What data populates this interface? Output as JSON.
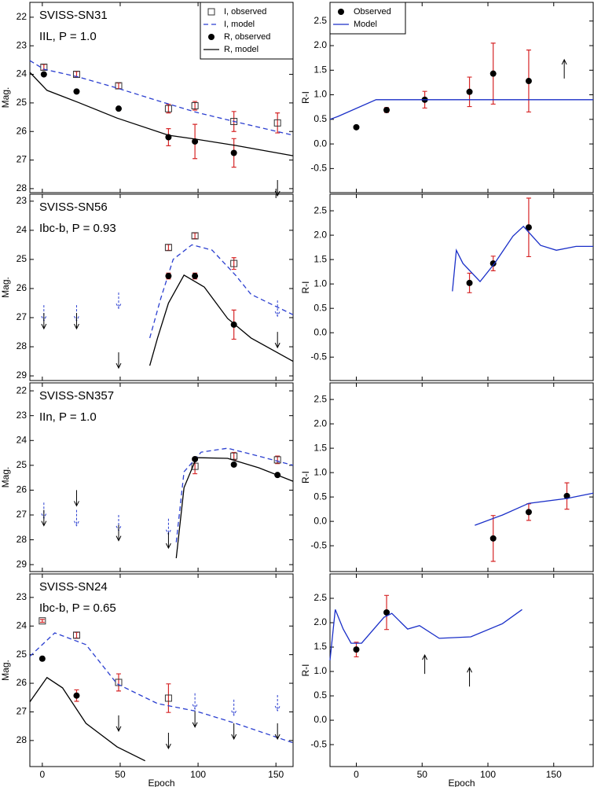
{
  "chart_data": [
    {
      "type": "line",
      "title": "SVISS-SN31",
      "subtitle": "IIL, P = 1.0",
      "ylabel": "Mag.",
      "xlim": [
        -8,
        161
      ],
      "ylim": [
        28.14,
        21.48
      ],
      "xticks": [
        0,
        50,
        100,
        150
      ],
      "yticks": [
        22,
        23,
        24,
        25,
        26,
        27,
        28
      ],
      "legend": "upper right",
      "series": [
        {
          "name": "I, observed",
          "kind": "observed",
          "marker": "square",
          "color": "#333333",
          "error_color": "#d62728",
          "x": [
            1,
            22,
            49,
            81,
            98,
            123,
            151
          ],
          "values": [
            23.75,
            24.0,
            24.4,
            25.2,
            25.1,
            25.65,
            25.7
          ],
          "errors": [
            0.1,
            0.1,
            0.1,
            0.15,
            0.15,
            0.35,
            0.35
          ]
        },
        {
          "name": "I, model",
          "kind": "model",
          "line": "dashed",
          "color": "#2b3fd0",
          "x": [
            -8,
            1,
            23,
            48,
            74,
            99,
            124,
            161
          ],
          "values": [
            23.52,
            23.82,
            24.09,
            24.48,
            24.92,
            25.33,
            25.66,
            26.13
          ]
        },
        {
          "name": "R, observed",
          "kind": "observed",
          "marker": "circle",
          "color": "#000000",
          "error_color": "#d62728",
          "x": [
            1,
            22,
            49,
            81,
            98,
            123
          ],
          "values": [
            24.0,
            24.6,
            25.2,
            26.2,
            26.35,
            26.75
          ],
          "errors": [
            0.05,
            0.05,
            0.05,
            0.3,
            0.6,
            0.5
          ]
        },
        {
          "name": "R, model",
          "kind": "model",
          "line": "solid",
          "color": "#000000",
          "x": [
            -8,
            3,
            23,
            48,
            81,
            99,
            124,
            161
          ],
          "values": [
            23.93,
            24.56,
            24.98,
            25.53,
            26.13,
            26.27,
            26.49,
            26.85
          ]
        },
        {
          "kind": "upper_limit",
          "line": "solid",
          "color": "#000000",
          "x": [
            151
          ],
          "values": [
            27.7
          ]
        }
      ]
    },
    {
      "type": "line",
      "ylabel": "R-I",
      "xlim": [
        -20,
        180
      ],
      "ylim": [
        -0.99,
        2.88
      ],
      "xticks": [
        0,
        50,
        100,
        150
      ],
      "yticks": [
        -0.5,
        {
          "value": 0,
          "label": "0.0"
        },
        0.5,
        {
          "value": 1,
          "label": "1.0"
        },
        1.5,
        {
          "value": 2,
          "label": "2.0"
        },
        2.5
      ],
      "legend": "upper left",
      "series": [
        {
          "name": "Observed",
          "kind": "observed",
          "marker": "circle",
          "color": "#000000",
          "error_color": "#d62728",
          "x": [
            0,
            23,
            52,
            86,
            104,
            131
          ],
          "values": [
            0.34,
            0.69,
            0.9,
            1.06,
            1.43,
            1.28
          ],
          "errors": [
            0.03,
            0.05,
            0.17,
            0.3,
            0.62,
            0.63
          ]
        },
        {
          "name": "Model",
          "kind": "model",
          "line": "solid",
          "color": "#1a2fc8",
          "x": [
            -20,
            -14,
            15,
            33,
            180
          ],
          "values": [
            0.5,
            0.56,
            0.9,
            0.9,
            0.9
          ]
        },
        {
          "kind": "lower_limit",
          "line": "solid",
          "color": "#000000",
          "x": [
            158
          ],
          "values": [
            1.33
          ]
        }
      ]
    },
    {
      "type": "line",
      "title": "SVISS-SN56",
      "subtitle": "Ibc-b, P = 0.93",
      "ylabel": "Mag.",
      "xlim": [
        -8,
        161
      ],
      "ylim": [
        29.16,
        22.76
      ],
      "xticks": [
        0,
        50,
        100,
        150
      ],
      "yticks": [
        23,
        24,
        25,
        26,
        27,
        28,
        29
      ],
      "series": [
        {
          "kind": "observed",
          "marker": "square",
          "color": "#333333",
          "error_color": "#d62728",
          "x": [
            81,
            98,
            123
          ],
          "values": [
            24.59,
            24.19,
            25.14
          ],
          "errors": [
            0.1,
            0.1,
            0.2
          ]
        },
        {
          "kind": "model",
          "line": "dashed",
          "color": "#2b3fd0",
          "x": [
            69,
            76,
            84,
            96,
            109,
            124,
            134,
            161
          ],
          "values": [
            27.7,
            26.35,
            25.0,
            24.5,
            24.68,
            25.54,
            26.2,
            26.9
          ]
        },
        {
          "kind": "observed",
          "marker": "circle",
          "color": "#000000",
          "error_color": "#d62728",
          "x": [
            81,
            98,
            123
          ],
          "values": [
            25.57,
            25.57,
            27.24
          ],
          "errors": [
            0.1,
            0.1,
            0.5
          ]
        },
        {
          "kind": "model",
          "line": "solid",
          "color": "#000000",
          "x": [
            69,
            74,
            81,
            91,
            104,
            119,
            134,
            161
          ],
          "values": [
            28.65,
            27.7,
            26.5,
            25.54,
            25.95,
            27.03,
            27.7,
            28.5
          ]
        },
        {
          "kind": "upper_limit",
          "line": "dashed",
          "color": "#2b3fd0",
          "x": [
            1,
            22,
            49,
            151
          ],
          "values": [
            26.57,
            26.57,
            26.14,
            26.41
          ]
        },
        {
          "kind": "upper_limit",
          "line": "solid",
          "color": "#000000",
          "x": [
            1,
            22,
            49,
            151
          ],
          "values": [
            26.84,
            26.84,
            28.19,
            27.49
          ]
        }
      ]
    },
    {
      "type": "line",
      "ylabel": "R-I",
      "xlim": [
        -20,
        180
      ],
      "ylim": [
        -0.98,
        2.84
      ],
      "xticks": [
        0,
        50,
        100,
        150
      ],
      "yticks": [
        -0.5,
        {
          "value": 0,
          "label": "0.0"
        },
        0.5,
        {
          "value": 1,
          "label": "1.0"
        },
        1.5,
        {
          "value": 2,
          "label": "2.0"
        },
        2.5
      ],
      "series": [
        {
          "kind": "observed",
          "marker": "circle",
          "color": "#000000",
          "error_color": "#d62728",
          "x": [
            86,
            104,
            131
          ],
          "values": [
            1.02,
            1.42,
            2.16
          ],
          "errors": [
            0.2,
            0.15,
            0.6
          ]
        },
        {
          "kind": "model",
          "line": "solid",
          "color": "#1a2fc8",
          "x": [
            73,
            76,
            81,
            94,
            105,
            119,
            127,
            140,
            152,
            167,
            180
          ],
          "values": [
            0.85,
            1.69,
            1.42,
            1.05,
            1.42,
            1.98,
            2.18,
            1.79,
            1.69,
            1.77,
            1.77
          ]
        }
      ]
    },
    {
      "type": "line",
      "title": "SVISS-SN357",
      "subtitle": "IIn, P = 1.0",
      "ylabel": "Mag.",
      "xlim": [
        -8,
        161
      ],
      "ylim": [
        29.28,
        21.68
      ],
      "xticks": [
        0,
        50,
        100,
        150
      ],
      "yticks": [
        22,
        23,
        24,
        25,
        26,
        27,
        28,
        29
      ],
      "series": [
        {
          "kind": "observed",
          "marker": "square",
          "color": "#333333",
          "error_color": "#d62728",
          "x": [
            98,
            123,
            151
          ],
          "values": [
            25.04,
            24.63,
            24.78
          ],
          "errors": [
            0.3,
            0.15,
            0.15
          ]
        },
        {
          "kind": "model",
          "line": "dashed",
          "color": "#2b3fd0",
          "x": [
            86,
            91,
            102,
            119,
            139,
            161
          ],
          "values": [
            28.1,
            25.26,
            24.47,
            24.31,
            24.63,
            25.0
          ]
        },
        {
          "kind": "observed",
          "marker": "circle",
          "color": "#000000",
          "error_color": "#d62728",
          "x": [
            98,
            123,
            151
          ],
          "values": [
            24.75,
            24.97,
            25.39
          ],
          "errors": [
            0.05,
            0.05,
            0.05
          ]
        },
        {
          "kind": "model",
          "line": "solid",
          "color": "#000000",
          "x": [
            86,
            91,
            99,
            119,
            139,
            161
          ],
          "values": [
            28.74,
            25.9,
            24.69,
            24.72,
            25.1,
            25.64
          ]
        },
        {
          "kind": "upper_limit",
          "line": "dashed",
          "color": "#2b3fd0",
          "x": [
            1,
            22,
            49,
            81
          ],
          "values": [
            26.5,
            26.8,
            27.0,
            27.15
          ]
        },
        {
          "kind": "upper_limit",
          "line": "solid",
          "color": "#000000",
          "x": [
            1,
            22,
            49,
            81
          ],
          "values": [
            26.8,
            26.0,
            27.4,
            27.7
          ]
        }
      ]
    },
    {
      "type": "line",
      "ylabel": "R-I",
      "xlim": [
        -20,
        180
      ],
      "ylim": [
        -1.03,
        2.84
      ],
      "xticks": [
        0,
        50,
        100,
        150
      ],
      "yticks": [
        -0.5,
        {
          "value": 0,
          "label": "0.0"
        },
        0.5,
        {
          "value": 1,
          "label": "1.0"
        },
        1.5,
        {
          "value": 2,
          "label": "2.0"
        },
        2.5
      ],
      "series": [
        {
          "kind": "observed",
          "marker": "circle",
          "color": "#000000",
          "error_color": "#d62728",
          "x": [
            104,
            131,
            160
          ],
          "values": [
            -0.35,
            0.19,
            0.52
          ],
          "errors": [
            0.47,
            0.17,
            0.27
          ]
        },
        {
          "kind": "model",
          "line": "solid",
          "color": "#1a2fc8",
          "x": [
            90,
            111,
            131,
            160,
            180
          ],
          "values": [
            -0.08,
            0.13,
            0.37,
            0.47,
            0.58
          ]
        }
      ]
    },
    {
      "type": "line",
      "title": "SVISS-SN24",
      "subtitle": "Ibc-b, P = 0.65",
      "ylabel": "Mag.",
      "xlabel": "Epoch",
      "xlim": [
        -8,
        161
      ],
      "ylim": [
        28.91,
        22.18
      ],
      "xticks": [
        0,
        50,
        100,
        150
      ],
      "yticks": [
        23,
        24,
        25,
        26,
        27,
        28
      ],
      "series": [
        {
          "kind": "observed",
          "marker": "square",
          "color": "#333333",
          "error_color": "#d62728",
          "x": [
            0,
            22,
            49,
            81
          ],
          "values": [
            23.82,
            24.32,
            25.97,
            26.52
          ],
          "errors": [
            0.05,
            0.1,
            0.3,
            0.5
          ]
        },
        {
          "kind": "model",
          "line": "dashed",
          "color": "#2b3fd0",
          "x": [
            -8,
            8,
            28,
            48,
            74,
            99,
            124,
            161
          ],
          "values": [
            25.06,
            24.24,
            24.65,
            26.02,
            26.71,
            26.98,
            27.4,
            28.08
          ]
        },
        {
          "kind": "observed",
          "marker": "circle",
          "color": "#000000",
          "error_color": "#d62728",
          "x": [
            0,
            22
          ],
          "values": [
            25.14,
            26.43
          ],
          "errors": [
            0.05,
            0.2
          ]
        },
        {
          "kind": "model",
          "line": "solid",
          "color": "#000000",
          "x": [
            -8,
            3,
            13,
            28,
            48,
            66
          ],
          "values": [
            26.65,
            25.8,
            26.16,
            27.4,
            28.22,
            28.71
          ]
        },
        {
          "kind": "upper_limit",
          "line": "dashed",
          "color": "#2b3fd0",
          "x": [
            98,
            123,
            151
          ],
          "values": [
            26.35,
            26.57,
            26.41
          ]
        },
        {
          "kind": "upper_limit",
          "line": "solid",
          "color": "#000000",
          "x": [
            49,
            81,
            98,
            123,
            151
          ],
          "values": [
            27.12,
            27.73,
            26.98,
            27.4,
            27.4
          ]
        }
      ]
    },
    {
      "type": "line",
      "ylabel": "R-I",
      "xlabel": "Epoch",
      "xlim": [
        -20,
        180
      ],
      "ylim": [
        -0.95,
        3.0
      ],
      "xticks": [
        0,
        50,
        100,
        150
      ],
      "yticks": [
        -0.5,
        {
          "value": 0,
          "label": "0.0"
        },
        0.5,
        {
          "value": 1,
          "label": "1.0"
        },
        1.5,
        {
          "value": 2,
          "label": "2.0"
        },
        2.5
      ],
      "series": [
        {
          "kind": "observed",
          "marker": "circle",
          "color": "#000000",
          "error_color": "#d62728",
          "x": [
            0,
            23
          ],
          "values": [
            1.45,
            2.21
          ],
          "errors": [
            0.15,
            0.35
          ]
        },
        {
          "kind": "model",
          "line": "solid",
          "color": "#1a2fc8",
          "x": [
            -20,
            -16,
            -10,
            -4,
            4,
            21,
            27,
            39,
            48,
            63,
            87,
            111,
            126
          ],
          "values": [
            1.23,
            2.27,
            1.87,
            1.58,
            1.58,
            2.11,
            2.19,
            1.87,
            1.94,
            1.68,
            1.71,
            1.98,
            2.27
          ]
        },
        {
          "kind": "lower_limit",
          "line": "solid",
          "color": "#000000",
          "x": [
            52,
            86
          ],
          "values": [
            0.95,
            0.69
          ]
        }
      ]
    }
  ]
}
